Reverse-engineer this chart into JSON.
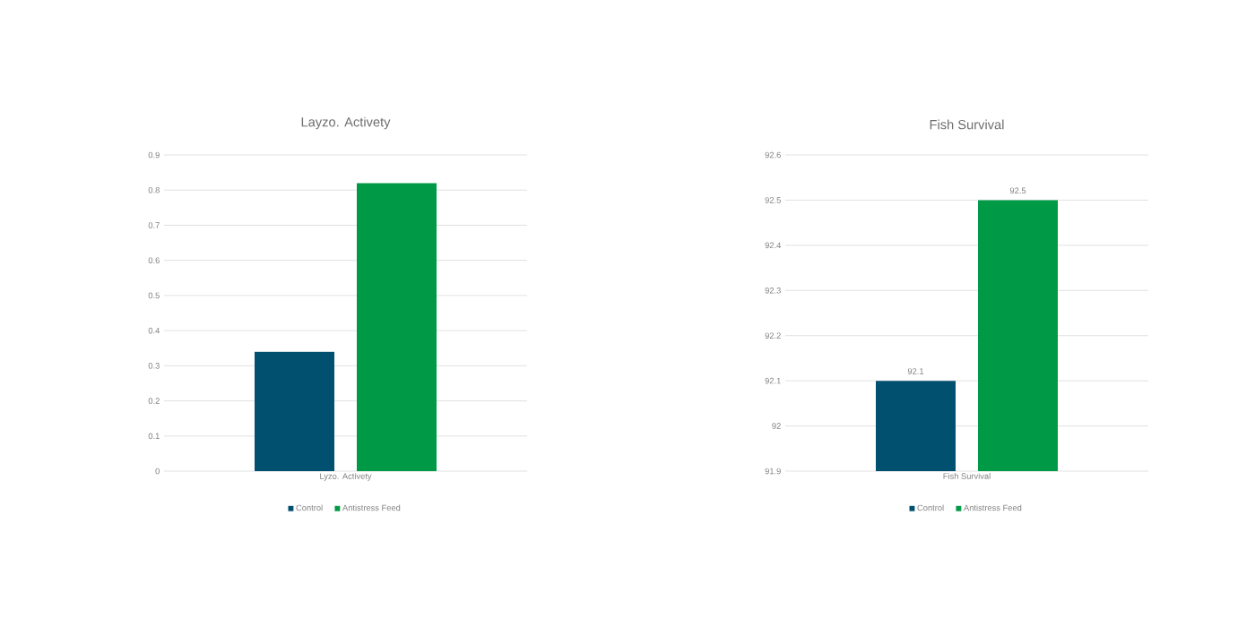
{
  "chart_data": [
    {
      "type": "bar",
      "title": "Layzo. Activety",
      "categories": [
        "Lyzo. Activety"
      ],
      "series": [
        {
          "name": "Control",
          "color": "#01506f",
          "values": [
            0.34
          ]
        },
        {
          "name": "Antistress Feed",
          "color": "#009a46",
          "values": [
            0.82
          ]
        }
      ],
      "ylim": [
        0,
        0.9
      ],
      "yticks": [
        0,
        0.1,
        0.2,
        0.3,
        0.4,
        0.5,
        0.6,
        0.7,
        0.8,
        0.9
      ],
      "grid": "y",
      "legend": "bottom"
    },
    {
      "type": "bar",
      "title": "Fish Survival",
      "categories": [
        "Fish Survival"
      ],
      "series": [
        {
          "name": "Control",
          "color": "#01506f",
          "values": [
            92.1
          ]
        },
        {
          "name": "Antistress Feed",
          "color": "#009a46",
          "values": [
            92.5
          ]
        }
      ],
      "ylim": [
        91.9,
        92.6
      ],
      "yticks": [
        91.9,
        92,
        92.1,
        92.2,
        92.3,
        92.4,
        92.5,
        92.6
      ],
      "grid": "y",
      "legend": "bottom",
      "data_labels": true
    }
  ]
}
